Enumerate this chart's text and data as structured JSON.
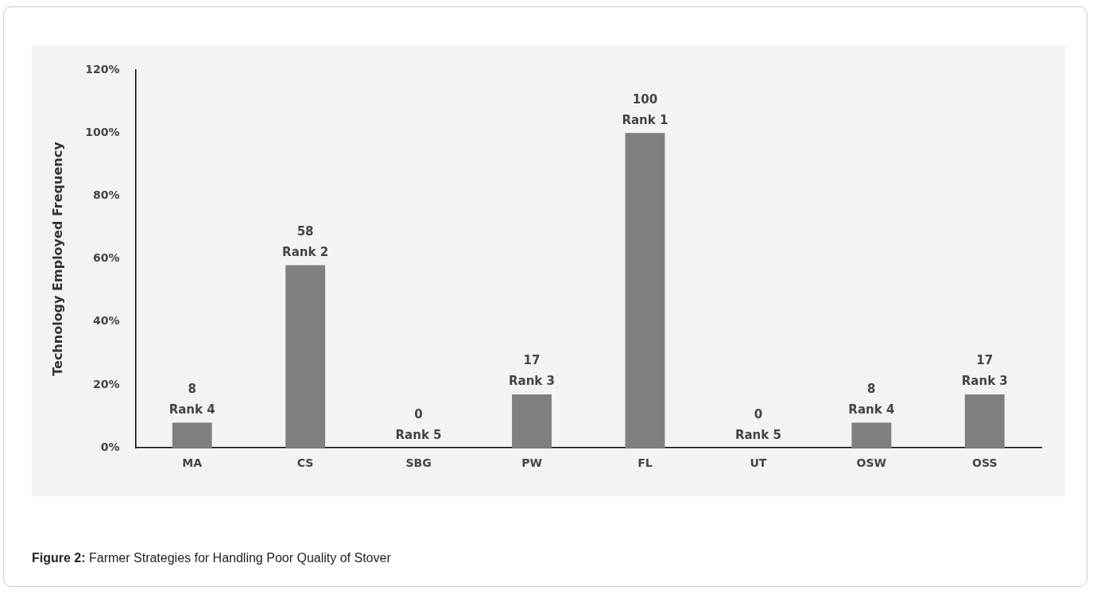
{
  "chart_data": {
    "type": "bar",
    "ylabel": "Technology Employed Frequency",
    "categories": [
      "MA",
      "CS",
      "SBG",
      "PW",
      "FL",
      "UT",
      "OSW",
      "OSS"
    ],
    "values": [
      8,
      58,
      0,
      17,
      100,
      0,
      8,
      17
    ],
    "value_labels": [
      "8\nRank 4",
      "58\nRank 2",
      "0\nRank 5",
      "17\nRank 3",
      "100\nRank 1",
      "0\nRank 5",
      "8\nRank 4",
      "17\nRank 3"
    ],
    "color": "#7f7f7f",
    "ylim": [
      0,
      120
    ],
    "yticks": [
      {
        "value": 0,
        "label": "0%"
      },
      {
        "value": 20,
        "label": "20%"
      },
      {
        "value": 40,
        "label": "40%"
      },
      {
        "value": 60,
        "label": "60%"
      },
      {
        "value": 80,
        "label": "80%"
      },
      {
        "value": 100,
        "label": "100%"
      },
      {
        "value": 120,
        "label": "120%"
      }
    ],
    "grid": false,
    "legend": false,
    "annotations": [
      "Figure 2: Farmer Strategies for Handling Poor Quality of Stover"
    ]
  }
}
